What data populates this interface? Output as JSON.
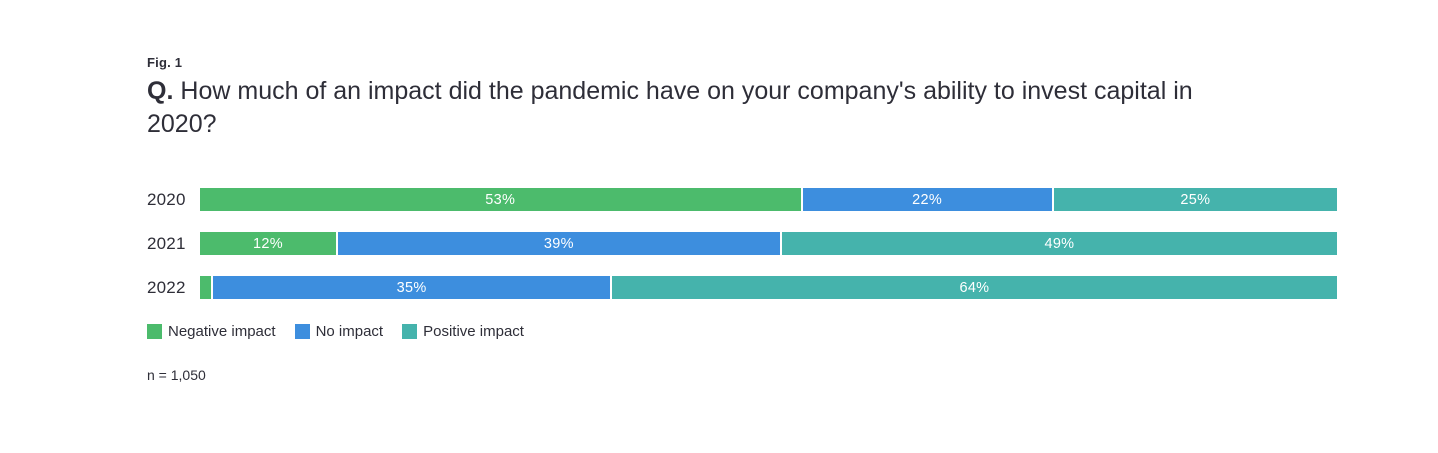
{
  "figure": {
    "fig_label": "Fig. 1",
    "question_prefix": "Q.",
    "question_text": "How much of an impact did the pandemic have on your company's ability to invest capital in 2020?"
  },
  "note": "n = 1,050",
  "chart_data": {
    "type": "bar",
    "orientation": "horizontal-stacked",
    "title": "Q. How much of an impact did the pandemic have on your company's ability to invest capital in 2020?",
    "categories": [
      "2020",
      "2021",
      "2022"
    ],
    "series": [
      {
        "name": "Negative impact",
        "color": "#4CBB6C",
        "values": [
          53,
          12,
          1
        ]
      },
      {
        "name": "No impact",
        "color": "#3D8EDE",
        "values": [
          22,
          39,
          35
        ]
      },
      {
        "name": "Positive impact",
        "color": "#45B3AC",
        "values": [
          25,
          49,
          64
        ]
      }
    ],
    "value_suffix": "%",
    "value_label_color": "#ffffff",
    "label_min_percent": 2,
    "xlim": [
      0,
      100
    ],
    "legend_position": "bottom",
    "grid": false,
    "text_color": "#2e2e38"
  }
}
